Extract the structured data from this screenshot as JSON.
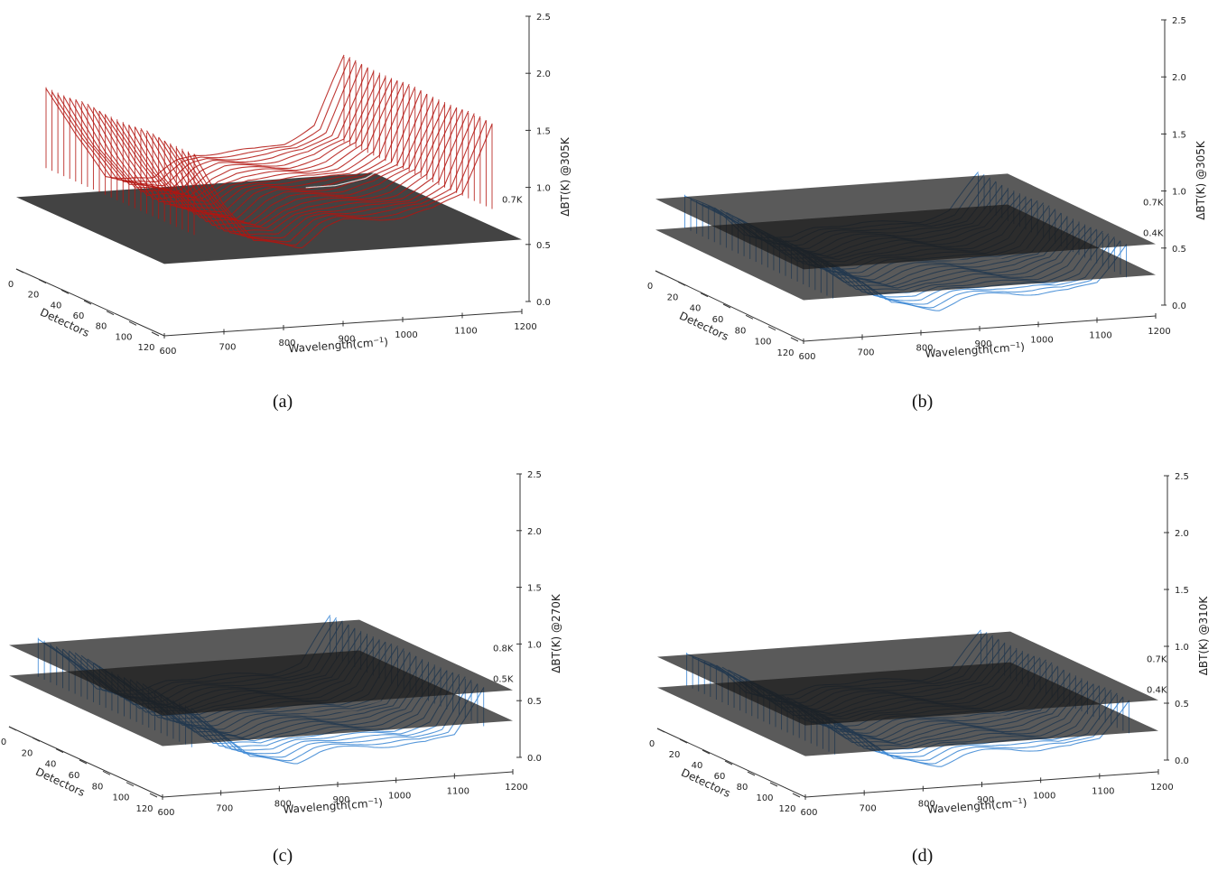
{
  "chart_data": [
    {
      "type": "surface3d",
      "panel": "a",
      "caption": "(a)",
      "xlabel": "Wavelength(cm",
      "xlabel_exp": "−1",
      "xlabel_close": ")",
      "ylabel": "Detectors",
      "zlabel": "ΔBT(K) @305K",
      "x_ticks": [
        "600",
        "700",
        "800",
        "900",
        "1000",
        "1100",
        "1200"
      ],
      "y_ticks": [
        "0",
        "20",
        "40",
        "60",
        "80",
        "100",
        "120"
      ],
      "z_ticks": [
        "0.0",
        "0.5",
        "1.0",
        "1.5",
        "2.0",
        "2.5"
      ],
      "xlim": [
        600,
        1200
      ],
      "ylim": [
        0,
        128
      ],
      "zlim": [
        0,
        2.5
      ],
      "series_color": "#b3140f",
      "planes": [
        {
          "z": 0.7,
          "label": "0.7K"
        }
      ],
      "profile": {
        "x": [
          650,
          700,
          750,
          800,
          830,
          870,
          900,
          950,
          1000,
          1050,
          1100,
          1150
        ],
        "z": [
          1.75,
          1.25,
          0.85,
          0.82,
          0.78,
          0.95,
          1.0,
          1.0,
          1.0,
          1.05,
          1.2,
          1.85
        ]
      }
    },
    {
      "type": "surface3d",
      "panel": "b",
      "caption": "(b)",
      "xlabel": "Wavelength(cm",
      "xlabel_exp": "−1",
      "xlabel_close": ")",
      "ylabel": "Detectors",
      "zlabel": "ΔBT(K) @305K",
      "x_ticks": [
        "600",
        "700",
        "800",
        "900",
        "1000",
        "1100",
        "1200"
      ],
      "y_ticks": [
        "0",
        "20",
        "40",
        "60",
        "80",
        "100",
        "120"
      ],
      "z_ticks": [
        "0.0",
        "0.5",
        "1.0",
        "1.5",
        "2.0",
        "2.5"
      ],
      "xlim": [
        600,
        1200
      ],
      "ylim": [
        0,
        128
      ],
      "zlim": [
        0,
        2.5
      ],
      "series_color": "#3a86d4",
      "planes": [
        {
          "z": 0.7,
          "label": "0.7K"
        },
        {
          "z": 0.4,
          "label": "0.4K"
        }
      ],
      "profile": {
        "x": [
          650,
          700,
          750,
          800,
          830,
          870,
          900,
          950,
          1000,
          1050,
          1100,
          1150
        ],
        "z": [
          0.72,
          0.55,
          0.3,
          0.25,
          0.22,
          0.3,
          0.32,
          0.33,
          0.3,
          0.3,
          0.38,
          0.72
        ]
      }
    },
    {
      "type": "surface3d",
      "panel": "c",
      "caption": "(c)",
      "xlabel": "Wavelength(cm",
      "xlabel_exp": "−1",
      "xlabel_close": ")",
      "ylabel": "Detectors",
      "zlabel": "ΔBT(K) @270K",
      "x_ticks": [
        "600",
        "700",
        "800",
        "900",
        "1000",
        "1100",
        "1200"
      ],
      "y_ticks": [
        "0",
        "20",
        "40",
        "60",
        "80",
        "100",
        "120"
      ],
      "z_ticks": [
        "0.0",
        "0.5",
        "1.0",
        "1.5",
        "2.0",
        "2.5"
      ],
      "xlim": [
        600,
        1200
      ],
      "ylim": [
        0,
        128
      ],
      "zlim": [
        0,
        2.5
      ],
      "series_color": "#3a86d4",
      "planes": [
        {
          "z": 0.8,
          "label": "0.8K"
        },
        {
          "z": 0.5,
          "label": "0.5K"
        }
      ],
      "profile": {
        "x": [
          650,
          700,
          750,
          800,
          830,
          870,
          900,
          950,
          1000,
          1050,
          1100,
          1150
        ],
        "z": [
          0.85,
          0.6,
          0.32,
          0.28,
          0.25,
          0.33,
          0.35,
          0.36,
          0.34,
          0.34,
          0.42,
          0.85
        ]
      }
    },
    {
      "type": "surface3d",
      "panel": "d",
      "caption": "(d)",
      "xlabel": "Wavelength(cm",
      "xlabel_exp": "−1",
      "xlabel_close": ")",
      "ylabel": "Detectors",
      "zlabel": "ΔBT(K) @310K",
      "x_ticks": [
        "600",
        "700",
        "800",
        "900",
        "1000",
        "1100",
        "1200"
      ],
      "y_ticks": [
        "0",
        "20",
        "40",
        "60",
        "80",
        "100",
        "120"
      ],
      "z_ticks": [
        "0.0",
        "0.5",
        "1.0",
        "1.5",
        "2.0",
        "2.5"
      ],
      "xlim": [
        600,
        1200
      ],
      "ylim": [
        0,
        128
      ],
      "zlim": [
        0,
        2.5
      ],
      "series_color": "#3a86d4",
      "planes": [
        {
          "z": 0.7,
          "label": "0.7K"
        },
        {
          "z": 0.4,
          "label": "0.4K"
        }
      ],
      "profile": {
        "x": [
          650,
          700,
          750,
          800,
          830,
          870,
          900,
          950,
          1000,
          1050,
          1100,
          1150
        ],
        "z": [
          0.72,
          0.55,
          0.3,
          0.25,
          0.22,
          0.3,
          0.32,
          0.33,
          0.3,
          0.3,
          0.38,
          0.72
        ]
      }
    }
  ]
}
